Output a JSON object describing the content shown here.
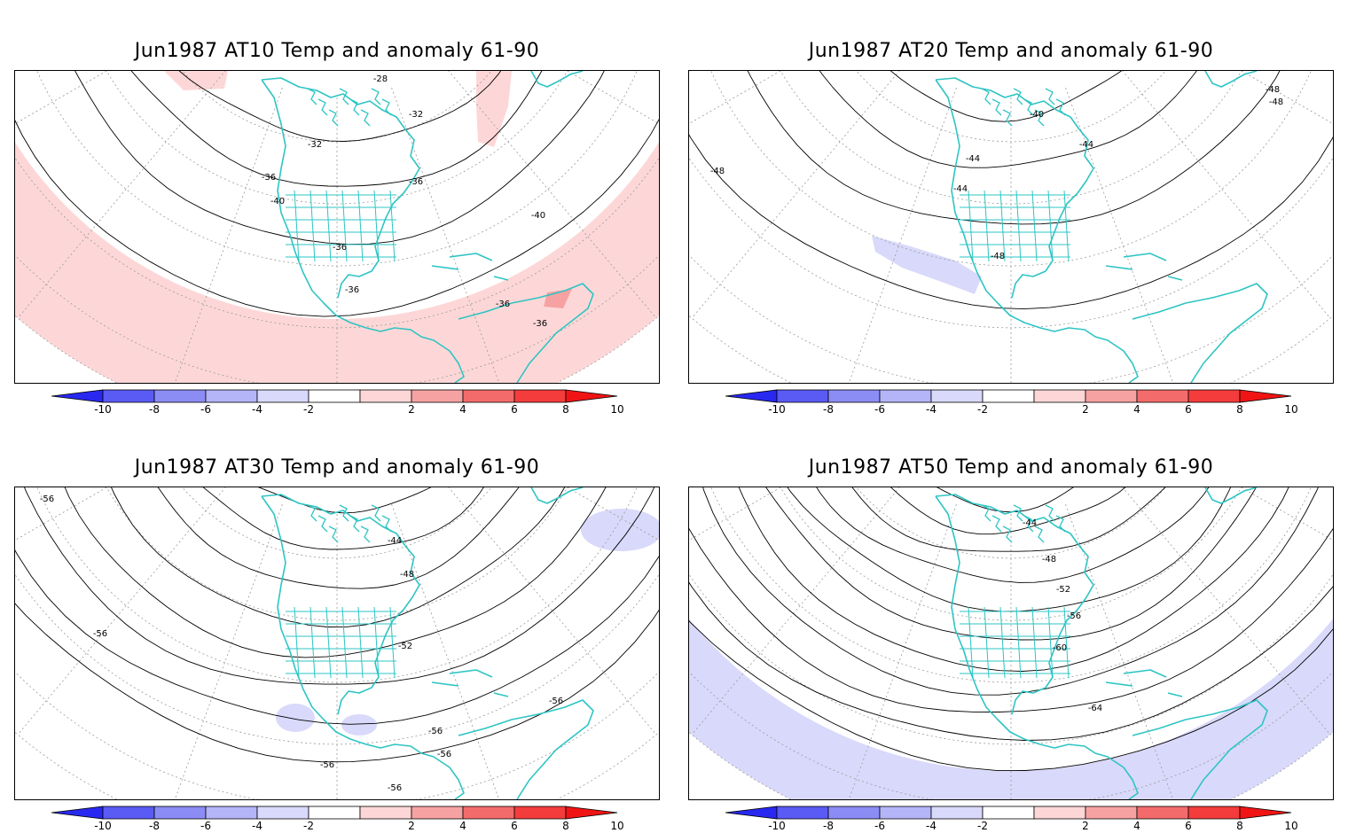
{
  "colors": {
    "coast": "#2ec4c4",
    "grid": "#9a9a9a",
    "contour": "#000000",
    "anom_pos_light": "#fdd7d7",
    "anom_pos_mid": "#f7a2a2",
    "anom_neg_light": "#d9d9fb"
  },
  "colorbar": {
    "ticks": [
      "-10",
      "-8",
      "-6",
      "-4",
      "-2",
      "2",
      "4",
      "6",
      "8",
      "10"
    ],
    "fills": [
      "#2828f0",
      "#5a5af5",
      "#8c8cf5",
      "#b4b4f8",
      "#d9d9fb",
      "#ffffff",
      "#fdd7d7",
      "#f7a2a2",
      "#f46b6b",
      "#f43c3c",
      "#f01414"
    ]
  },
  "panels": [
    {
      "title": "Jun1987 AT10 Temp and anomaly 61-90",
      "level": "AT10",
      "anomaly": "positive",
      "contour_labels": [
        "-28",
        "-32",
        "-32",
        "-36",
        "-36",
        "-40",
        "-40",
        "-36",
        "-36",
        "-36",
        "-36"
      ]
    },
    {
      "title": "Jun1987 AT20 Temp and anomaly 61-90",
      "level": "AT20",
      "anomaly": "negative-small",
      "contour_labels": [
        "-40",
        "-44",
        "-44",
        "-44",
        "-48",
        "-48",
        "-48",
        "-48"
      ]
    },
    {
      "title": "Jun1987 AT30 Temp and anomaly 61-90",
      "level": "AT30",
      "anomaly": "negative-small",
      "contour_labels": [
        "-56",
        "-44",
        "-48",
        "-52",
        "-56",
        "-56",
        "-56",
        "-56",
        "-56",
        "-56"
      ]
    },
    {
      "title": "Jun1987 AT50 Temp and anomaly 61-90",
      "level": "AT50",
      "anomaly": "negative",
      "contour_labels": [
        "-44",
        "-48",
        "-52",
        "-56",
        "-60",
        "-64"
      ]
    }
  ]
}
